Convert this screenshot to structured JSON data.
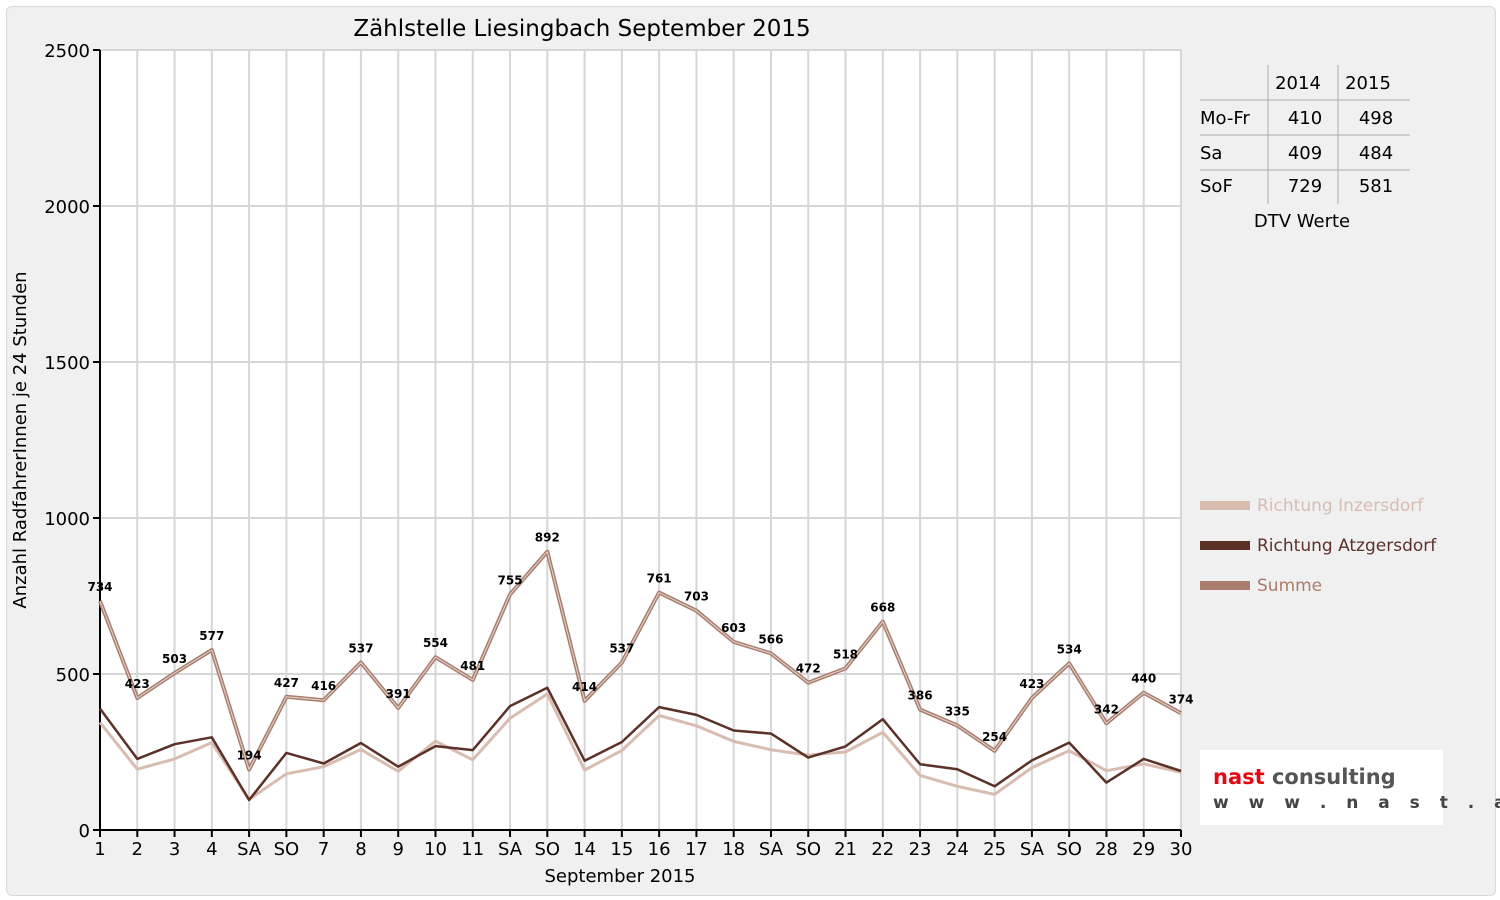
{
  "colors": {
    "inzersdorf": "#d9bcb0",
    "atzgersdorf": "#5c3128",
    "summe": "#a87d6d",
    "weekend_red": "#e00000",
    "logo_red": "#e30613",
    "logo_dark": "#555555"
  },
  "chart_data": {
    "type": "line",
    "title": "Zählstelle Liesingbach September 2015",
    "xlabel": "September 2015",
    "ylabel": "Anzahl RadfahrerInnen je 24 Stunden",
    "ylim": [
      0,
      2500
    ],
    "yticks": [
      0,
      500,
      1000,
      1500,
      2000,
      2500
    ],
    "grid": true,
    "legend_position": "right",
    "categories": [
      "1",
      "2",
      "3",
      "4",
      "SA",
      "SO",
      "7",
      "8",
      "9",
      "10",
      "11",
      "SA",
      "SO",
      "14",
      "15",
      "16",
      "17",
      "18",
      "SA",
      "SO",
      "21",
      "22",
      "23",
      "24",
      "25",
      "SA",
      "SO",
      "28",
      "29",
      "30"
    ],
    "sunday_labels": [
      "SO"
    ],
    "series": [
      {
        "name": "Richtung Inzersdorf",
        "color_key": "inzersdorf",
        "values": [
          345,
          195,
          228,
          280,
          98,
          180,
          203,
          258,
          188,
          285,
          225,
          358,
          436,
          192,
          255,
          367,
          334,
          284,
          257,
          240,
          250,
          313,
          175,
          140,
          114,
          200,
          254,
          190,
          212,
          185
        ]
      },
      {
        "name": "Richtung Atzgersdorf",
        "color_key": "atzgersdorf",
        "values": [
          389,
          228,
          275,
          297,
          96,
          247,
          213,
          279,
          203,
          269,
          256,
          397,
          456,
          222,
          282,
          394,
          369,
          319,
          309,
          232,
          268,
          355,
          211,
          195,
          140,
          223,
          280,
          152,
          228,
          189
        ]
      },
      {
        "name": "Summe",
        "color_key": "summe",
        "values": [
          734,
          423,
          503,
          577,
          194,
          427,
          416,
          537,
          391,
          554,
          481,
          755,
          892,
          414,
          537,
          761,
          703,
          603,
          566,
          472,
          518,
          668,
          386,
          335,
          254,
          423,
          534,
          342,
          440,
          374
        ],
        "show_labels": true
      }
    ]
  },
  "dtv_table": {
    "headers": [
      "",
      "2014",
      "2015"
    ],
    "rows": [
      {
        "label": "Mo-Fr",
        "v2014": "410",
        "v2015": "498"
      },
      {
        "label": "Sa",
        "v2014": "409",
        "v2015": "484"
      },
      {
        "label": "SoF",
        "v2014": "729",
        "v2015": "581"
      }
    ],
    "caption": "DTV Werte"
  },
  "logo": {
    "name": "nast consulting",
    "url": "w w w . n a s t . a t"
  }
}
